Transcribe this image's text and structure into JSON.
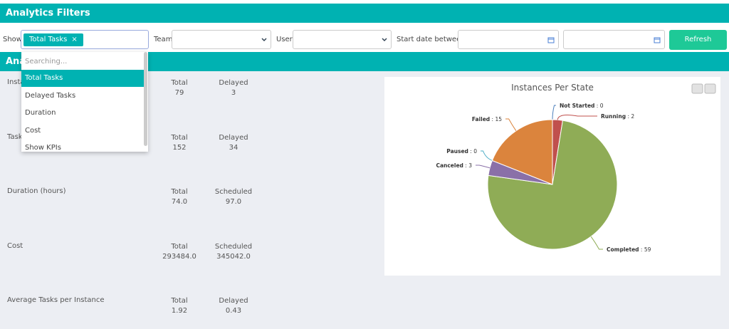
{
  "header": {
    "title": "Analytics Filters"
  },
  "filters": {
    "show_label": "Show",
    "selected_tag": "Total Tasks",
    "team_label": "Team",
    "user_label": "User",
    "date_label": "Start date between:",
    "refresh_button": "Refresh"
  },
  "dropdown": {
    "search_placeholder": "Searching...",
    "options": [
      "Total Tasks",
      "Delayed Tasks",
      "Duration",
      "Cost",
      "Show KPIs"
    ]
  },
  "section": {
    "title": "Ana"
  },
  "metrics": [
    {
      "label": "Insta",
      "columns": [
        {
          "heading": "Total",
          "value": "79"
        },
        {
          "heading": "Delayed",
          "value": "3"
        }
      ]
    },
    {
      "label": "Tasks",
      "columns": [
        {
          "heading": "Total",
          "value": "152"
        },
        {
          "heading": "Delayed",
          "value": "34"
        }
      ]
    },
    {
      "label": "Duration (hours)",
      "columns": [
        {
          "heading": "Total",
          "value": "74.0"
        },
        {
          "heading": "Scheduled",
          "value": "97.0"
        }
      ]
    },
    {
      "label": "Cost",
      "columns": [
        {
          "heading": "Total",
          "value": "293484.0"
        },
        {
          "heading": "Scheduled",
          "value": "345042.0"
        }
      ]
    },
    {
      "label": "Average Tasks per Instance",
      "columns": [
        {
          "heading": "Total",
          "value": "1.92"
        },
        {
          "heading": "Delayed",
          "value": "0.43"
        }
      ]
    }
  ],
  "chart": {
    "type": "pie",
    "title": "Instances Per State",
    "label_separator": " : ",
    "labels": [
      "Not Started",
      "Running",
      "Completed",
      "Canceled",
      "Paused",
      "Failed"
    ],
    "values": [
      0,
      2,
      59,
      3,
      0,
      15
    ],
    "colors": [
      "#4f81bd",
      "#c0504d",
      "#8fac56",
      "#8a70a8",
      "#4bacc6",
      "#db843d"
    ]
  }
}
